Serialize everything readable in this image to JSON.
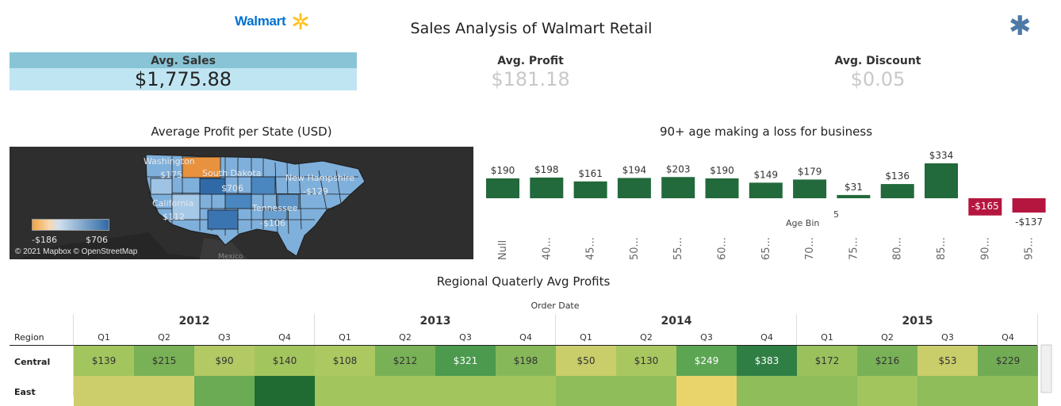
{
  "header": {
    "logo_text": "Walmart",
    "title": "Sales Analysis of Walmart Retail",
    "top_right_icon": "asterisk-icon"
  },
  "kpis": {
    "sales": {
      "label": "Avg. Sales",
      "value": "$1,775.88"
    },
    "profit": {
      "label": "Avg. Profit",
      "value": "$181.18"
    },
    "discount": {
      "label": "Avg. Discount",
      "value": "$0.05"
    }
  },
  "map": {
    "title": "Average Profit per State (USD)",
    "labels": [
      {
        "text": "Washington"
      },
      {
        "text": "$175"
      },
      {
        "text": "South Dakota"
      },
      {
        "text": "$706"
      },
      {
        "text": "New Hampshire"
      },
      {
        "text": "-$129"
      },
      {
        "text": "California"
      },
      {
        "text": "$112"
      },
      {
        "text": "Tennessee"
      },
      {
        "text": "-$106"
      },
      {
        "text": "Mexico"
      }
    ],
    "legend": {
      "min": "-$186",
      "max": "$706"
    },
    "credit": "© 2021 Mapbox © OpenStreetMap"
  },
  "chart_data": {
    "type": "bar",
    "title": "90+ age making a loss for business",
    "xlabel": "Age Bin",
    "categories": [
      "Null",
      "40...",
      "45...",
      "50...",
      "55...",
      "60...",
      "65...",
      "70...",
      "75...",
      "80...",
      "85...",
      "90...",
      "95..."
    ],
    "values": [
      190,
      198,
      161,
      194,
      203,
      190,
      149,
      179,
      31,
      136,
      334,
      -165,
      -137
    ],
    "value_labels": [
      "$190",
      "$198",
      "$161",
      "$194",
      "$203",
      "$190",
      "$149",
      "$179",
      "$31",
      "$136",
      "$334",
      "-$165",
      "-$137"
    ],
    "colors": {
      "positive": "#22693b",
      "negative": "#b5163f"
    },
    "stray_label": "5"
  },
  "heatmap": {
    "title": "Regional Quaterly Avg Profits",
    "column_group_label": "Order Date",
    "row_header": "Region",
    "years": [
      "2012",
      "2013",
      "2014",
      "2015"
    ],
    "quarters": [
      "Q1",
      "Q2",
      "Q3",
      "Q4"
    ],
    "rows": [
      {
        "region": "Central",
        "values": [
          "$139",
          "$215",
          "$90",
          "$140",
          "$108",
          "$212",
          "$321",
          "$198",
          "$50",
          "$130",
          "$249",
          "$383",
          "$172",
          "$216",
          "$53",
          "$229"
        ],
        "colors": [
          "#a3c55e",
          "#79b156",
          "#b2c964",
          "#a3c55e",
          "#abc861",
          "#79b156",
          "#4b9a4e",
          "#86b859",
          "#c9cd6a",
          "#a9c760",
          "#5ba553",
          "#2f7f44",
          "#9bc15d",
          "#79b156",
          "#c9cd6a",
          "#71ac54"
        ]
      },
      {
        "region": "East",
        "values": [],
        "colors": [
          "#cbce6b",
          "#cbce6b",
          "#6aab53",
          "#1f6b32",
          "#a3c55e",
          "#a3c55e",
          "#a3c55e",
          "#a3c55e",
          "#8ebd5a",
          "#8ebd5a",
          "#e9d36b",
          "#8ebd5a",
          "#8ebd5a",
          "#a3c55e",
          "#8ebd5a",
          "#8ebd5a"
        ]
      }
    ]
  }
}
